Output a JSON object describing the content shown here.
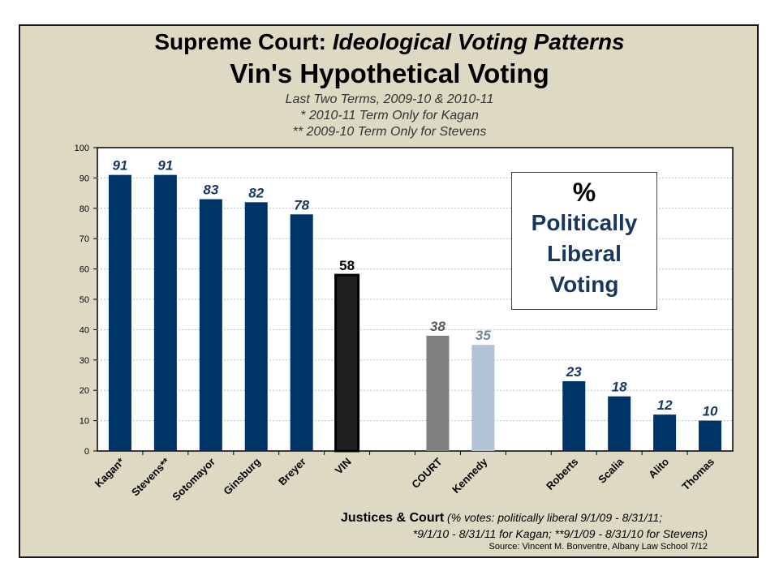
{
  "chart_data": {
    "type": "bar",
    "title_part1": "Supreme Court: ",
    "title_part2": "Ideological Voting Patterns",
    "title2": "Vin's Hypothetical Voting",
    "subtitles": [
      "Last Two Terms, 2009-10 & 2010-11",
      "* 2010-11 Term Only for Kagan",
      "** 2009-10 Term Only for Stevens"
    ],
    "categories": [
      "Kagan*",
      "Stevens**",
      "Sotomayor",
      "Ginsburg",
      "Breyer",
      "VIN",
      "",
      "COURT",
      "Kennedy",
      "",
      "Roberts",
      "Scalia",
      "Alito",
      "Thomas"
    ],
    "values": [
      91,
      91,
      83,
      82,
      78,
      58,
      null,
      38,
      35,
      null,
      23,
      18,
      12,
      10
    ],
    "bar_colors": [
      "#003366",
      "#003366",
      "#003366",
      "#003366",
      "#003366",
      "#1f1f1f",
      "",
      "#7f7f7f",
      "#b3c3d6",
      "",
      "#003366",
      "#003366",
      "#003366",
      "#003366"
    ],
    "label_colors": [
      "#17375e",
      "#17375e",
      "#17375e",
      "#17375e",
      "#17375e",
      "#000000",
      "",
      "#595959",
      "#6b86a6",
      "",
      "#17375e",
      "#17375e",
      "#17375e",
      "#17375e"
    ],
    "ylim": [
      0,
      100
    ],
    "yticks": [
      0,
      10,
      20,
      30,
      40,
      50,
      60,
      70,
      80,
      90,
      100
    ],
    "grid": true,
    "xlabel_bold": "Justices & Court",
    "xlabel_note1": " (% votes: politically liberal 9/1/09 - 8/31/11;",
    "xlabel_note2": "*9/1/10 - 8/31/11 for Kagan; **9/1/09 - 8/31/10 for Stevens)",
    "source": "Source:  Vincent M. Bonventre,  Albany Law School  7/12",
    "callout": {
      "line1": "%",
      "line2": "Politically",
      "line3": "Liberal",
      "line4": "Voting"
    }
  }
}
